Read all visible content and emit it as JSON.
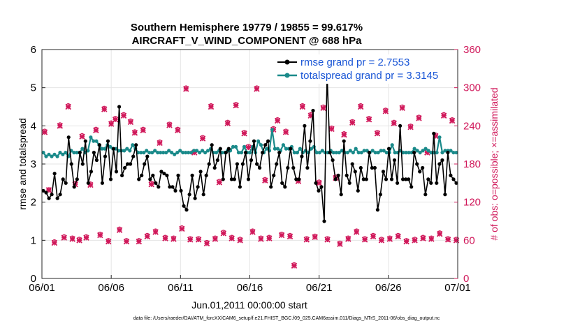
{
  "chart_data": {
    "type": "line",
    "title_line1": "Southern Hemisphere 19779 / 19855 = 99.617%",
    "title_line2": "AIRCRAFT_V_WIND_COMPONENT @ 688 hPa",
    "xlabel": "Jun.01,2011 00:00:00 start",
    "ylabel_left": "rmse and totalspread",
    "ylabel_right": "# of obs: o=possible; ×=assimilated",
    "footnote": "data file: /Users/raeder/DAI/ATM_forcXX/CAM6_setup/f.e21.FHIST_BGC.f09_025.CAM6assim.011/Diags_NTrS_2011-06/obs_diag_output.nc",
    "x_tick_labels": [
      "06/01",
      "06/06",
      "06/11",
      "06/16",
      "06/21",
      "06/26",
      "07/01"
    ],
    "x_range_days": [
      0,
      30
    ],
    "ylim_left": [
      0,
      6
    ],
    "yticks_left": [
      "0",
      "1",
      "2",
      "3",
      "4",
      "5",
      "6"
    ],
    "ylim_right": [
      0,
      360
    ],
    "yticks_right": [
      "0",
      "60",
      "120",
      "180",
      "240",
      "300",
      "360"
    ],
    "colors": {
      "rmse": "#000000",
      "spread": "#1a8a8a",
      "obs": "#d0185a",
      "legend_text": "#1a56d6"
    },
    "legend": [
      {
        "name": "rmse grand pr = 2.7553"
      },
      {
        "name": "totalspread grand pr = 3.3145"
      }
    ],
    "series": [
      {
        "name": "rmse",
        "values": [
          2.3,
          2.25,
          2.1,
          2.2,
          2.75,
          2.1,
          2.2,
          2.6,
          2.5,
          3.7,
          3.0,
          2.4,
          2.6,
          3.3,
          3.0,
          3.6,
          2.5,
          2.8,
          3.3,
          3.1,
          3.5,
          2.5,
          3.2,
          3.6,
          2.6,
          3.4,
          2.8,
          4.5,
          2.7,
          2.9,
          3.0,
          3.0,
          3.2,
          3.5,
          2.6,
          2.7,
          3.0,
          3.2,
          2.6,
          2.7,
          2.5,
          2.4,
          2.8,
          2.75,
          2.7,
          2.4,
          2.4,
          2.3,
          2.7,
          2.3,
          1.9,
          1.8,
          2.2,
          2.7,
          2.1,
          2.4,
          2.8,
          2.2,
          2.7,
          3.0,
          3.5,
          2.9,
          3.1,
          3.4,
          2.6,
          3.3,
          3.4,
          2.6,
          2.6,
          3.0,
          2.4,
          3.0,
          3.3,
          2.6,
          3.1,
          3.6,
          3.0,
          2.9,
          3.3,
          3.5,
          3.6,
          2.4,
          2.7,
          3.0,
          3.3,
          2.5,
          2.4,
          2.9,
          3.4,
          2.9,
          2.6,
          2.6,
          3.2,
          4.0,
          2.9,
          3.6,
          4.4,
          2.5,
          2.3,
          2.4,
          1.5,
          5.35,
          3.3,
          3.1,
          2.6,
          2.7,
          2.2,
          3.6,
          2.7,
          2.5,
          3.0,
          2.8,
          2.3,
          2.9,
          2.6,
          2.6,
          3.3,
          2.9,
          2.9,
          1.8,
          2.2,
          2.8,
          2.6,
          3.4,
          2.6,
          3.1,
          2.5,
          4.0,
          2.6,
          2.6,
          2.6,
          2.4,
          3.3,
          3.0,
          2.8,
          2.9,
          2.2,
          2.6,
          2.5,
          3.8,
          2.5,
          3.0,
          3.1,
          2.2,
          3.3,
          2.7,
          2.6,
          2.5
        ]
      },
      {
        "name": "totalspread",
        "values": [
          3.3,
          3.2,
          3.25,
          3.2,
          3.25,
          3.2,
          3.3,
          3.25,
          3.3,
          3.2,
          3.35,
          3.3,
          3.3,
          3.3,
          3.4,
          3.3,
          3.35,
          3.7,
          3.6,
          3.6,
          3.5,
          3.4,
          3.4,
          3.5,
          3.45,
          3.4,
          3.4,
          3.35,
          3.35,
          3.35,
          3.4,
          3.35,
          3.5,
          3.4,
          3.3,
          3.3,
          3.3,
          3.35,
          3.3,
          3.3,
          3.35,
          3.3,
          3.3,
          3.3,
          3.3,
          3.35,
          3.3,
          3.25,
          3.3,
          3.35,
          3.3,
          3.3,
          3.3,
          3.3,
          3.35,
          3.35,
          3.3,
          3.35,
          3.3,
          3.35,
          3.4,
          3.3,
          3.3,
          3.35,
          3.3,
          3.3,
          3.35,
          3.35,
          3.45,
          3.45,
          3.3,
          3.3,
          3.45,
          3.3,
          3.3,
          3.45,
          3.3,
          3.6,
          3.5,
          3.3,
          3.4,
          3.35,
          3.9,
          3.4,
          3.4,
          3.35,
          3.5,
          3.4,
          3.4,
          3.45,
          3.3,
          3.3,
          3.4,
          3.3,
          3.35,
          3.3,
          3.4,
          3.45,
          3.3,
          3.3,
          3.35,
          3.3,
          3.3,
          3.35,
          3.3,
          3.3,
          3.3,
          3.35,
          3.3,
          3.3,
          3.35,
          3.3,
          3.4,
          3.3,
          3.3,
          3.35,
          3.35,
          3.3,
          3.35,
          3.3,
          3.3,
          3.35,
          3.35,
          3.3,
          3.3,
          3.5,
          3.3,
          3.3,
          3.35,
          3.3,
          3.3,
          3.3,
          3.3,
          3.4,
          3.35,
          3.3,
          3.35,
          3.4,
          3.35,
          3.3,
          3.3,
          3.3,
          3.7,
          3.3,
          3.35,
          3.35,
          3.35,
          3.3,
          3.3
        ]
      },
      {
        "name": "obs_possible",
        "x": [
          0.2,
          0.5,
          0.9,
          1.3,
          1.6,
          1.9,
          2.2,
          2.4,
          2.7,
          2.9,
          3.2,
          3.5,
          3.9,
          4.2,
          4.5,
          4.8,
          5.0,
          5.3,
          5.6,
          5.9,
          6.1,
          6.4,
          6.7,
          7.0,
          7.3,
          7.6,
          7.9,
          8.2,
          8.5,
          8.9,
          9.2,
          9.5,
          9.8,
          10.1,
          10.4,
          10.7,
          11.0,
          11.3,
          11.6,
          11.9,
          12.2,
          12.5,
          12.8,
          13.1,
          13.4,
          13.7,
          14.0,
          14.3,
          14.6,
          14.9,
          15.2,
          15.5,
          15.8,
          16.1,
          16.4,
          16.7,
          17.0,
          17.3,
          17.6,
          17.9,
          18.2,
          18.5,
          18.8,
          19.1,
          19.4,
          19.7,
          20.0,
          20.3,
          20.6,
          20.9,
          21.2,
          21.5,
          21.8,
          22.1,
          22.4,
          22.7,
          23.0,
          23.3,
          23.6,
          23.9,
          24.2,
          24.5,
          24.8,
          25.1,
          25.4,
          25.7,
          26.0,
          26.3,
          26.6,
          26.9,
          27.2,
          27.5,
          27.8,
          28.1,
          28.4,
          28.7,
          29.0,
          29.3,
          29.6,
          29.9
        ],
        "values": [
          232,
          140,
          58,
          242,
          66,
          272,
          64,
          150,
          62,
          225,
          66,
          149,
          235,
          70,
          268,
          60,
          245,
          252,
          78,
          258,
          60,
          248,
          231,
          60,
          235,
          68,
          150,
          75,
          215,
          65,
          243,
          64,
          235,
          80,
          300,
          63,
          200,
          63,
          222,
          57,
          272,
          64,
          153,
          73,
          246,
          65,
          274,
          62,
          230,
          208,
          75,
          300,
          64,
          156,
          65,
          236,
          250,
          70,
          232,
          68,
          22,
          155,
          272,
          63,
          258,
          67,
          152,
          270,
          63,
          237,
          160,
          56,
          228,
          64,
          247,
          75,
          272,
          63,
          252,
          68,
          230,
          62,
          265,
          64,
          246,
          68,
          270,
          60,
          240,
          62,
          254,
          65,
          200,
          64,
          226,
          72,
          258,
          63,
          250,
          62
        ]
      },
      {
        "name": "obs_assimilated",
        "x": [
          0.2,
          0.5,
          0.9,
          1.3,
          1.6,
          1.9,
          2.2,
          2.4,
          2.7,
          2.9,
          3.2,
          3.5,
          3.9,
          4.2,
          4.5,
          4.8,
          5.0,
          5.3,
          5.6,
          5.9,
          6.1,
          6.4,
          6.7,
          7.0,
          7.3,
          7.6,
          7.9,
          8.2,
          8.5,
          8.9,
          9.2,
          9.5,
          9.8,
          10.1,
          10.4,
          10.7,
          11.0,
          11.3,
          11.6,
          11.9,
          12.2,
          12.5,
          12.8,
          13.1,
          13.4,
          13.7,
          14.0,
          14.3,
          14.6,
          14.9,
          15.2,
          15.5,
          15.8,
          16.1,
          16.4,
          16.7,
          17.0,
          17.3,
          17.6,
          17.9,
          18.2,
          18.5,
          18.8,
          19.1,
          19.4,
          19.7,
          20.0,
          20.3,
          20.6,
          20.9,
          21.2,
          21.5,
          21.8,
          22.1,
          22.4,
          22.7,
          23.0,
          23.3,
          23.6,
          23.9,
          24.2,
          24.5,
          24.8,
          25.1,
          25.4,
          25.7,
          26.0,
          26.3,
          26.6,
          26.9,
          27.2,
          27.5,
          27.8,
          28.1,
          28.4,
          28.7,
          29.0,
          29.3,
          29.6,
          29.9
        ],
        "values": [
          230,
          139,
          56,
          240,
          64,
          270,
          62,
          148,
          60,
          223,
          64,
          147,
          233,
          68,
          266,
          58,
          243,
          250,
          76,
          256,
          58,
          246,
          229,
          58,
          233,
          66,
          148,
          73,
          213,
          63,
          241,
          62,
          233,
          78,
          298,
          61,
          198,
          61,
          220,
          55,
          270,
          62,
          151,
          71,
          244,
          63,
          272,
          60,
          228,
          206,
          73,
          298,
          62,
          154,
          63,
          234,
          248,
          68,
          230,
          66,
          20,
          153,
          270,
          61,
          256,
          65,
          150,
          268,
          61,
          235,
          158,
          54,
          226,
          62,
          245,
          73,
          270,
          61,
          250,
          66,
          228,
          60,
          263,
          62,
          244,
          66,
          268,
          58,
          238,
          60,
          252,
          63,
          198,
          62,
          224,
          70,
          256,
          61,
          248,
          60
        ]
      }
    ]
  }
}
